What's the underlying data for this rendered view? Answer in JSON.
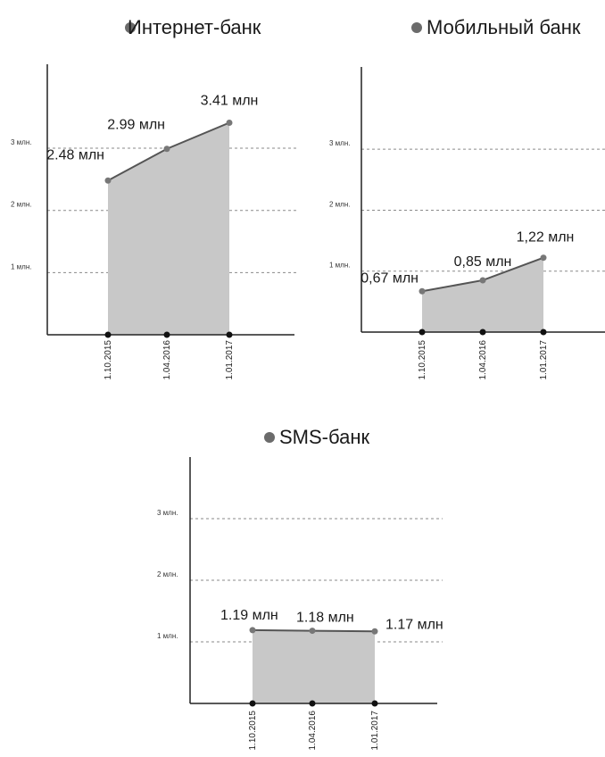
{
  "colors": {
    "area": "#c8c8c8",
    "line": "#555555",
    "point": "#777777",
    "axis": "#222222",
    "grid": "#8a8a8a",
    "legend_dot": "#6b6b6b"
  },
  "chart_data": [
    {
      "type": "area",
      "title": "Интернет-банк",
      "categories": [
        "1.10.2015",
        "1.04.2016",
        "1.01.2017"
      ],
      "values": [
        2.48,
        2.99,
        3.41
      ],
      "data_labels": [
        "2.48 млн",
        "2.99 млн",
        "3.41 млн"
      ],
      "y_ticks": [
        {
          "value": 1,
          "label": "1 млн."
        },
        {
          "value": 2,
          "label": "2 млн."
        },
        {
          "value": 3,
          "label": "3 млн."
        }
      ],
      "ylim": [
        0,
        4.35
      ],
      "grid": true,
      "legend_marker": "dot"
    },
    {
      "type": "area",
      "title": "Мобильный банк",
      "categories": [
        "1.10.2015",
        "1.04.2016",
        "1.01.2017"
      ],
      "values": [
        0.67,
        0.85,
        1.22
      ],
      "data_labels": [
        "0,67 млн",
        "0,85 млн",
        "1,22 млн"
      ],
      "y_ticks": [
        {
          "value": 1,
          "label": "1 млн."
        },
        {
          "value": 2,
          "label": "2 млн."
        },
        {
          "value": 3,
          "label": "3 млн."
        }
      ],
      "ylim": [
        0,
        4.35
      ],
      "grid": true,
      "legend_marker": "dot"
    },
    {
      "type": "area",
      "title": "SMS-банк",
      "categories": [
        "1.10.2015",
        "1.04.2016",
        "1.01.2017"
      ],
      "values": [
        1.19,
        1.18,
        1.17
      ],
      "data_labels": [
        "1.19 млн",
        "1.18 млн",
        "1.17 млн"
      ],
      "y_ticks": [
        {
          "value": 1,
          "label": "1 млн."
        },
        {
          "value": 2,
          "label": "2 млн."
        },
        {
          "value": 3,
          "label": "3 млн."
        }
      ],
      "ylim": [
        0,
        4.0
      ],
      "grid": true,
      "legend_marker": "dot"
    }
  ]
}
